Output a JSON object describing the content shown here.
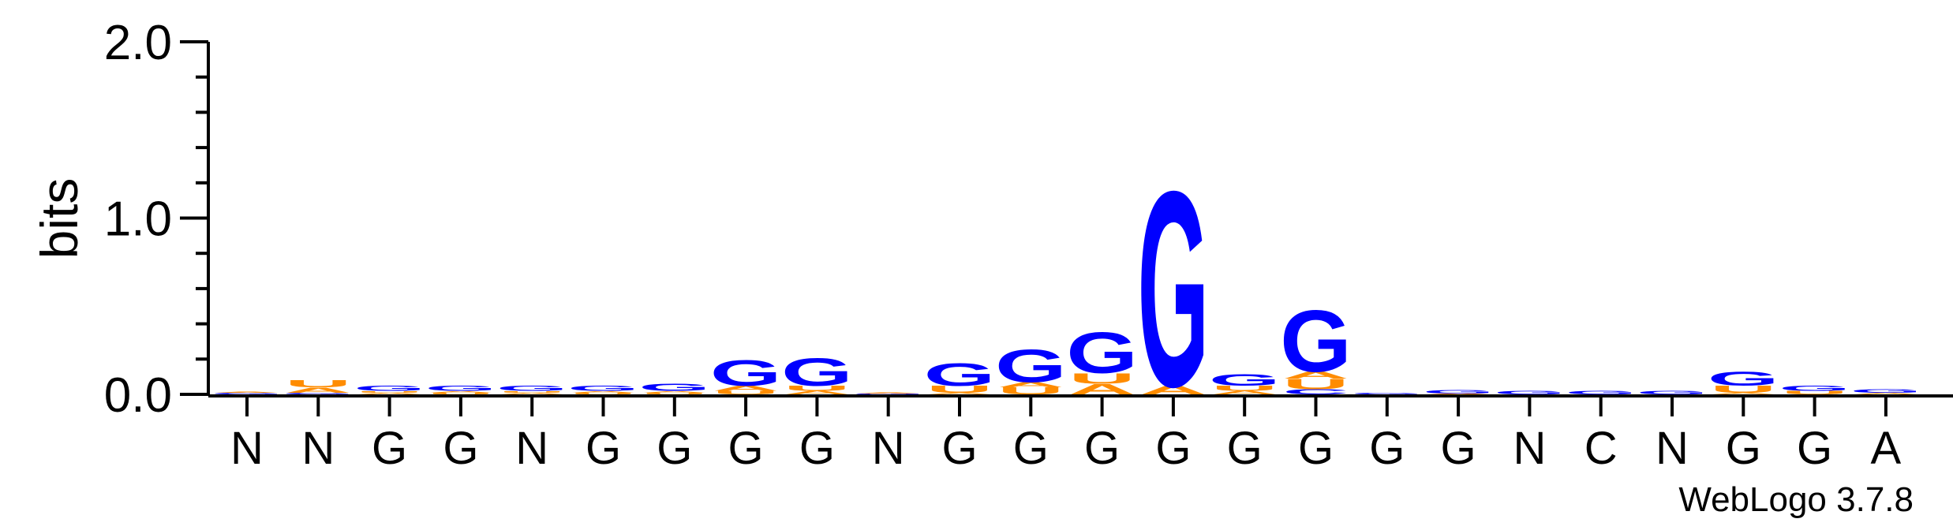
{
  "chart_data": {
    "type": "sequence_logo",
    "ylabel": "bits",
    "ylim": [
      0,
      2.0
    ],
    "yticks": [
      "0.0",
      "1.0",
      "2.0"
    ],
    "credit": "WebLogo 3.7.8",
    "colors": {
      "G": "#0000ff",
      "U": "#ff8c00",
      "A": "#ff8c00",
      "C": "#0000ff"
    },
    "consensus": [
      "N",
      "N",
      "G",
      "G",
      "N",
      "G",
      "G",
      "G",
      "G",
      "N",
      "G",
      "G",
      "G",
      "G",
      "G",
      "G",
      "G",
      "G",
      "N",
      "C",
      "N",
      "G",
      "G",
      "A"
    ],
    "positions": [
      {
        "index": 1,
        "label": "N",
        "stack": [
          {
            "l": "G",
            "bits": 0.01
          },
          {
            "l": "A",
            "bits": 0.005
          }
        ]
      },
      {
        "index": 2,
        "label": "N",
        "stack": [
          {
            "l": "G",
            "bits": 0.01
          },
          {
            "l": "A",
            "bits": 0.03
          },
          {
            "l": "U",
            "bits": 0.04
          }
        ]
      },
      {
        "index": 3,
        "label": "G",
        "stack": [
          {
            "l": "A",
            "bits": 0.01
          },
          {
            "l": "U",
            "bits": 0.01
          },
          {
            "l": "G",
            "bits": 0.03
          }
        ]
      },
      {
        "index": 4,
        "label": "G",
        "stack": [
          {
            "l": "U",
            "bits": 0.01
          },
          {
            "l": "A",
            "bits": 0.01
          },
          {
            "l": "G",
            "bits": 0.03
          }
        ]
      },
      {
        "index": 5,
        "label": "N",
        "stack": [
          {
            "l": "A",
            "bits": 0.01
          },
          {
            "l": "U",
            "bits": 0.01
          },
          {
            "l": "G",
            "bits": 0.03
          }
        ]
      },
      {
        "index": 6,
        "label": "G",
        "stack": [
          {
            "l": "U",
            "bits": 0.01
          },
          {
            "l": "A",
            "bits": 0.01
          },
          {
            "l": "G",
            "bits": 0.03
          }
        ]
      },
      {
        "index": 7,
        "label": "G",
        "stack": [
          {
            "l": "U",
            "bits": 0.01
          },
          {
            "l": "A",
            "bits": 0.01
          },
          {
            "l": "G",
            "bits": 0.04
          }
        ]
      },
      {
        "index": 8,
        "label": "G",
        "stack": [
          {
            "l": "U",
            "bits": 0.02
          },
          {
            "l": "A",
            "bits": 0.03
          },
          {
            "l": "G",
            "bits": 0.15
          }
        ]
      },
      {
        "index": 9,
        "label": "G",
        "stack": [
          {
            "l": "A",
            "bits": 0.02
          },
          {
            "l": "U",
            "bits": 0.03
          },
          {
            "l": "G",
            "bits": 0.16
          }
        ]
      },
      {
        "index": 10,
        "label": "N",
        "stack": [
          {
            "l": "G",
            "bits": 0.005
          },
          {
            "l": "A",
            "bits": 0.005
          }
        ]
      },
      {
        "index": 11,
        "label": "G",
        "stack": [
          {
            "l": "A",
            "bits": 0.01
          },
          {
            "l": "U",
            "bits": 0.04
          },
          {
            "l": "G",
            "bits": 0.13
          }
        ]
      },
      {
        "index": 12,
        "label": "G",
        "stack": [
          {
            "l": "U",
            "bits": 0.04
          },
          {
            "l": "A",
            "bits": 0.03
          },
          {
            "l": "G",
            "bits": 0.19
          }
        ]
      },
      {
        "index": 13,
        "label": "G",
        "stack": [
          {
            "l": "A",
            "bits": 0.06
          },
          {
            "l": "U",
            "bits": 0.06
          },
          {
            "l": "G",
            "bits": 0.24
          }
        ]
      },
      {
        "index": 14,
        "label": "G",
        "stack": [
          {
            "l": "A",
            "bits": 0.05
          },
          {
            "l": "G",
            "bits": 1.14
          }
        ]
      },
      {
        "index": 15,
        "label": "G",
        "stack": [
          {
            "l": "A",
            "bits": 0.02
          },
          {
            "l": "U",
            "bits": 0.03
          },
          {
            "l": "G",
            "bits": 0.07
          }
        ]
      },
      {
        "index": 16,
        "label": "G",
        "stack": [
          {
            "l": "C",
            "bits": 0.03
          },
          {
            "l": "U",
            "bits": 0.06
          },
          {
            "l": "A",
            "bits": 0.04
          },
          {
            "l": "G",
            "bits": 0.36
          }
        ]
      },
      {
        "index": 17,
        "label": "G",
        "stack": [
          {
            "l": "G",
            "bits": 0.01
          }
        ]
      },
      {
        "index": 18,
        "label": "G",
        "stack": [
          {
            "l": "A",
            "bits": 0.005
          },
          {
            "l": "G",
            "bits": 0.02
          }
        ]
      },
      {
        "index": 19,
        "label": "N",
        "stack": [
          {
            "l": "G",
            "bits": 0.02
          }
        ]
      },
      {
        "index": 20,
        "label": "C",
        "stack": [
          {
            "l": "G",
            "bits": 0.02
          }
        ]
      },
      {
        "index": 21,
        "label": "N",
        "stack": [
          {
            "l": "G",
            "bits": 0.02
          }
        ]
      },
      {
        "index": 22,
        "label": "G",
        "stack": [
          {
            "l": "A",
            "bits": 0.01
          },
          {
            "l": "U",
            "bits": 0.04
          },
          {
            "l": "G",
            "bits": 0.08
          }
        ]
      },
      {
        "index": 23,
        "label": "G",
        "stack": [
          {
            "l": "U",
            "bits": 0.02
          },
          {
            "l": "G",
            "bits": 0.03
          }
        ]
      },
      {
        "index": 24,
        "label": "A",
        "stack": [
          {
            "l": "A",
            "bits": 0.01
          },
          {
            "l": "G",
            "bits": 0.02
          }
        ]
      }
    ]
  }
}
